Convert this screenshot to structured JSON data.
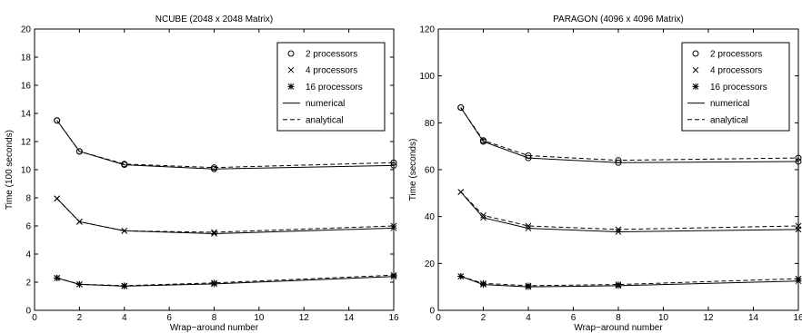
{
  "chart_data": [
    {
      "type": "line",
      "title": "NCUBE (2048 x 2048 Matrix)",
      "xlabel": "Wrap−around number",
      "ylabel": "Time (100 seconds)",
      "xlim": [
        0,
        16
      ],
      "ylim": [
        0,
        20
      ],
      "xticks": [
        "0",
        "2",
        "4",
        "6",
        "8",
        "10",
        "12",
        "14",
        "16"
      ],
      "yticks": [
        "0",
        "2",
        "4",
        "6",
        "8",
        "10",
        "12",
        "14",
        "16",
        "18",
        "20"
      ],
      "grid": false,
      "legend_position": "top-right",
      "legend": [
        {
          "label": "2 processors",
          "marker": "circle"
        },
        {
          "label": "4 processors",
          "marker": "x"
        },
        {
          "label": "16 processors",
          "marker": "star"
        },
        {
          "label": "numerical",
          "line": "solid"
        },
        {
          "label": "analytical",
          "line": "dashed"
        }
      ],
      "x": [
        1,
        2,
        4,
        8,
        16
      ],
      "series": [
        {
          "processors": 2,
          "marker": "circle",
          "numerical": [
            13.5,
            11.3,
            10.35,
            10.05,
            10.3
          ],
          "analytical": [
            13.5,
            11.3,
            10.4,
            10.15,
            10.5
          ]
        },
        {
          "processors": 4,
          "marker": "x",
          "numerical": [
            7.95,
            6.3,
            5.65,
            5.45,
            5.85
          ],
          "analytical": [
            7.95,
            6.3,
            5.65,
            5.55,
            6.0
          ]
        },
        {
          "processors": 16,
          "marker": "star",
          "numerical": [
            2.3,
            1.85,
            1.72,
            1.88,
            2.4
          ],
          "analytical": [
            2.3,
            1.85,
            1.75,
            1.95,
            2.5
          ]
        }
      ]
    },
    {
      "type": "line",
      "title": "PARAGON (4096 x 4096 Matrix)",
      "xlabel": "Wrap−around number",
      "ylabel": "Time (seconds)",
      "xlim": [
        0,
        16
      ],
      "ylim": [
        0,
        120
      ],
      "xticks": [
        "0",
        "2",
        "4",
        "6",
        "8",
        "10",
        "12",
        "14",
        "16"
      ],
      "yticks": [
        "0",
        "20",
        "40",
        "60",
        "80",
        "100",
        "120"
      ],
      "grid": false,
      "legend_position": "top-right",
      "legend": [
        {
          "label": "2 processors",
          "marker": "circle"
        },
        {
          "label": "4 processors",
          "marker": "x"
        },
        {
          "label": "16 processors",
          "marker": "star"
        },
        {
          "label": "numerical",
          "line": "solid"
        },
        {
          "label": "analytical",
          "line": "dashed"
        }
      ],
      "x": [
        1,
        2,
        4,
        8,
        16
      ],
      "series": [
        {
          "processors": 2,
          "marker": "circle",
          "numerical": [
            86.5,
            72,
            65,
            63,
            63.5
          ],
          "analytical": [
            86.5,
            72.5,
            66,
            64,
            65
          ]
        },
        {
          "processors": 4,
          "marker": "x",
          "numerical": [
            50.5,
            39.5,
            35,
            33.5,
            34.5
          ],
          "analytical": [
            50.5,
            40.5,
            36,
            34.5,
            36
          ]
        },
        {
          "processors": 16,
          "marker": "star",
          "numerical": [
            14.5,
            11,
            10,
            10.5,
            12.5
          ],
          "analytical": [
            14.5,
            11.5,
            10.5,
            11,
            13.5
          ]
        }
      ]
    }
  ]
}
